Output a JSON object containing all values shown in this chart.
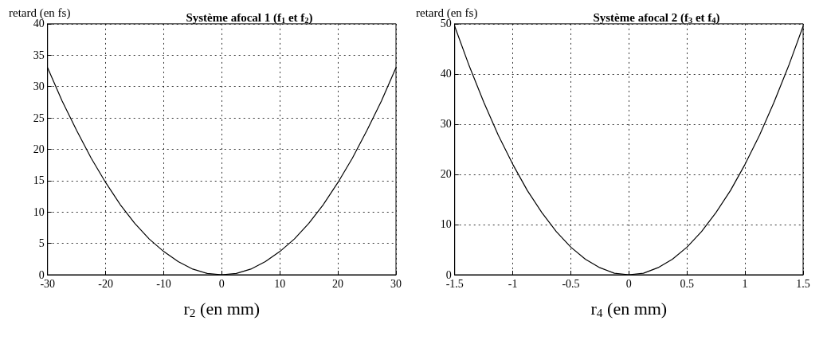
{
  "chart_data": [
    {
      "type": "line",
      "title": "Système afocal 1 (f$_{1}$ et f$_{2}$)",
      "xlabel": "r$_{2}$ (en mm)",
      "ylabel": "retard (en fs)",
      "x": [
        -30,
        -27.5,
        -25,
        -22.5,
        -20,
        -17.5,
        -15,
        -12.5,
        -10,
        -7.5,
        -5,
        -2.5,
        0,
        2.5,
        5,
        7.5,
        10,
        12.5,
        15,
        17.5,
        20,
        22.5,
        25,
        27.5,
        30
      ],
      "series": [
        {
          "color": "#000000",
          "values": [
            33,
            27.7,
            23,
            18.6,
            14.7,
            11.2,
            8.2,
            5.7,
            3.7,
            2.1,
            0.9,
            0.2,
            0,
            0.2,
            0.9,
            2.1,
            3.7,
            5.7,
            8.2,
            11.2,
            14.7,
            18.6,
            23,
            27.7,
            33
          ]
        }
      ],
      "xlim": [
        -30,
        30
      ],
      "xticks": [
        -30,
        -20,
        -10,
        0,
        10,
        20,
        30
      ],
      "ylim": [
        0,
        40
      ],
      "yticks": [
        0,
        5,
        10,
        15,
        20,
        25,
        30,
        35,
        40
      ],
      "grid": true,
      "legend": false,
      "marker": "none",
      "line_style": "solid"
    },
    {
      "type": "line",
      "title": "Système afocal 2 (f$_{3}$ et f$_{4}$)",
      "xlabel": "r$_{4}$ (en mm)",
      "ylabel": "retard (en fs)",
      "x": [
        -1.5,
        -1.375,
        -1.25,
        -1.125,
        -1,
        -0.875,
        -0.75,
        -0.625,
        -0.5,
        -0.375,
        -0.25,
        -0.125,
        0,
        0.125,
        0.25,
        0.375,
        0.5,
        0.625,
        0.75,
        0.875,
        1,
        1.125,
        1.25,
        1.375,
        1.5
      ],
      "series": [
        {
          "color": "#000000",
          "values": [
            49.5,
            41.6,
            34.4,
            27.8,
            22,
            16.8,
            12.4,
            8.6,
            5.5,
            3.1,
            1.4,
            0.3,
            0,
            0.3,
            1.4,
            3.1,
            5.5,
            8.6,
            12.4,
            16.8,
            22,
            27.8,
            34.4,
            41.6,
            49.5
          ]
        }
      ],
      "xlim": [
        -1.5,
        1.5
      ],
      "xticks": [
        -1.5,
        -1,
        -0.5,
        0,
        0.5,
        1,
        1.5
      ],
      "ylim": [
        0,
        50
      ],
      "yticks": [
        0,
        10,
        20,
        30,
        40,
        50
      ],
      "grid": true,
      "legend": false,
      "marker": "none",
      "line_style": "solid"
    }
  ]
}
